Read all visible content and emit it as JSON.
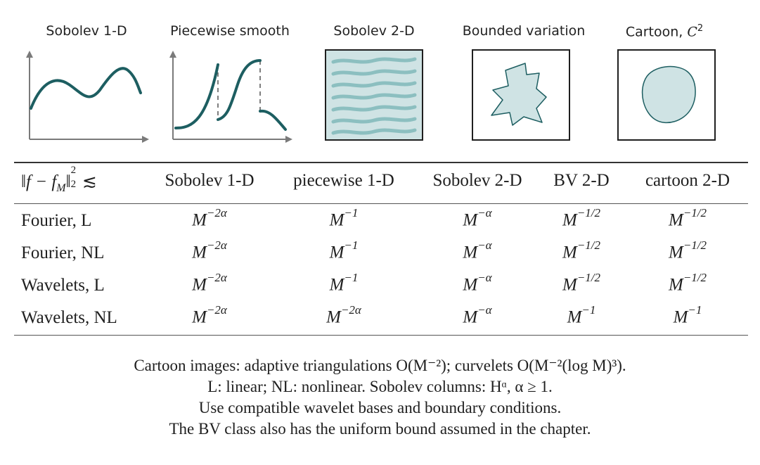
{
  "colors": {
    "curve": "#1d5e61",
    "fill": "#cfe3e4",
    "stripe": "#8cbfc0",
    "axis": "#7a7a7a",
    "frame": "#1f1f1f"
  },
  "panels": [
    {
      "title": "Sobolev 1-D",
      "kind": "smooth-curve"
    },
    {
      "title": "Piecewise smooth",
      "kind": "piecewise-curve"
    },
    {
      "title": "Sobolev 2-D",
      "kind": "wavy-stripes"
    },
    {
      "title": "Bounded variation",
      "kind": "jagged-blob"
    },
    {
      "title_text": "Cartoon, ",
      "title_math": "C",
      "title_sup": "2",
      "kind": "smooth-blob"
    }
  ],
  "table": {
    "header_label": "‖f − f_M‖₂² ≲",
    "header_math": {
      "norm": "‖f − f",
      "sub": "M",
      "close": "‖",
      "sub2": "2",
      "sup2": "2",
      "rel": " ≲"
    },
    "columns": [
      "Sobolev 1-D",
      "piecewise 1-D",
      "Sobolev 2-D",
      "BV 2-D",
      "cartoon 2-D"
    ],
    "rows": [
      {
        "label": "Fourier, L",
        "cells": [
          {
            "base": "M",
            "exp": "−2α"
          },
          {
            "base": "M",
            "exp": "−1"
          },
          {
            "base": "M",
            "exp": "−α"
          },
          {
            "base": "M",
            "exp": "−1/2"
          },
          {
            "base": "M",
            "exp": "−1/2"
          }
        ]
      },
      {
        "label": "Fourier, NL",
        "cells": [
          {
            "base": "M",
            "exp": "−2α"
          },
          {
            "base": "M",
            "exp": "−1"
          },
          {
            "base": "M",
            "exp": "−α"
          },
          {
            "base": "M",
            "exp": "−1/2"
          },
          {
            "base": "M",
            "exp": "−1/2"
          }
        ]
      },
      {
        "label": "Wavelets, L",
        "cells": [
          {
            "base": "M",
            "exp": "−2α"
          },
          {
            "base": "M",
            "exp": "−1"
          },
          {
            "base": "M",
            "exp": "−α"
          },
          {
            "base": "M",
            "exp": "−1/2"
          },
          {
            "base": "M",
            "exp": "−1/2"
          }
        ]
      },
      {
        "label": "Wavelets, NL",
        "cells": [
          {
            "base": "M",
            "exp": "−2α"
          },
          {
            "base": "M",
            "exp": "−2α"
          },
          {
            "base": "M",
            "exp": "−α"
          },
          {
            "base": "M",
            "exp": "−1"
          },
          {
            "base": "M",
            "exp": "−1"
          }
        ]
      }
    ]
  },
  "notes": [
    "Cartoon images: adaptive triangulations O(M⁻²); curvelets O(M⁻²(log M)³).",
    "L: linear; NL: nonlinear. Sobolev columns: Hᵅ, α ≥ 1.",
    "Use compatible wavelet bases and boundary conditions.",
    "The BV class also has the uniform bound assumed in the chapter."
  ]
}
